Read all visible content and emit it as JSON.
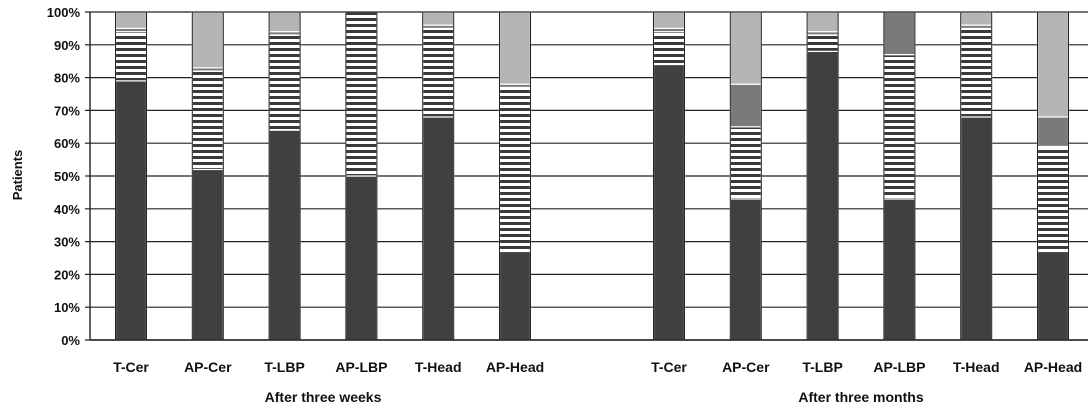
{
  "chart_data": {
    "type": "bar",
    "stacked": true,
    "ylabel": "Patients",
    "ylim": [
      0,
      100
    ],
    "y_ticks": [
      "0%",
      "10%",
      "20%",
      "30%",
      "40%",
      "50%",
      "60%",
      "70%",
      "80%",
      "90%",
      "100%"
    ],
    "grid": true,
    "groups": [
      {
        "label": "After three weeks",
        "categories": [
          "T-Cer",
          "AP-Cer",
          "T-LBP",
          "AP-LBP",
          "T-Head",
          "AP-Head"
        ],
        "stacks": [
          [
            79,
            15,
            1,
            5
          ],
          [
            52,
            30,
            1,
            17
          ],
          [
            64,
            29,
            1,
            6
          ],
          [
            50,
            50,
            0,
            0
          ],
          [
            68,
            27,
            1,
            4
          ],
          [
            27,
            50,
            1,
            22
          ]
        ]
      },
      {
        "label": "After three months",
        "categories": [
          "T-Cer",
          "AP-Cer",
          "T-LBP",
          "AP-LBP",
          "T-Head",
          "AP-Head"
        ],
        "stacks": [
          [
            84,
            10,
            1,
            5
          ],
          [
            43,
            22,
            13,
            22
          ],
          [
            88,
            5,
            1,
            6
          ],
          [
            43,
            44,
            13,
            0
          ],
          [
            68,
            27,
            1,
            4
          ],
          [
            27,
            32,
            9,
            32
          ]
        ]
      }
    ],
    "segment_colors": [
      "#404040",
      "stripes",
      "#7a7a7a",
      "#b5b5b5"
    ]
  }
}
